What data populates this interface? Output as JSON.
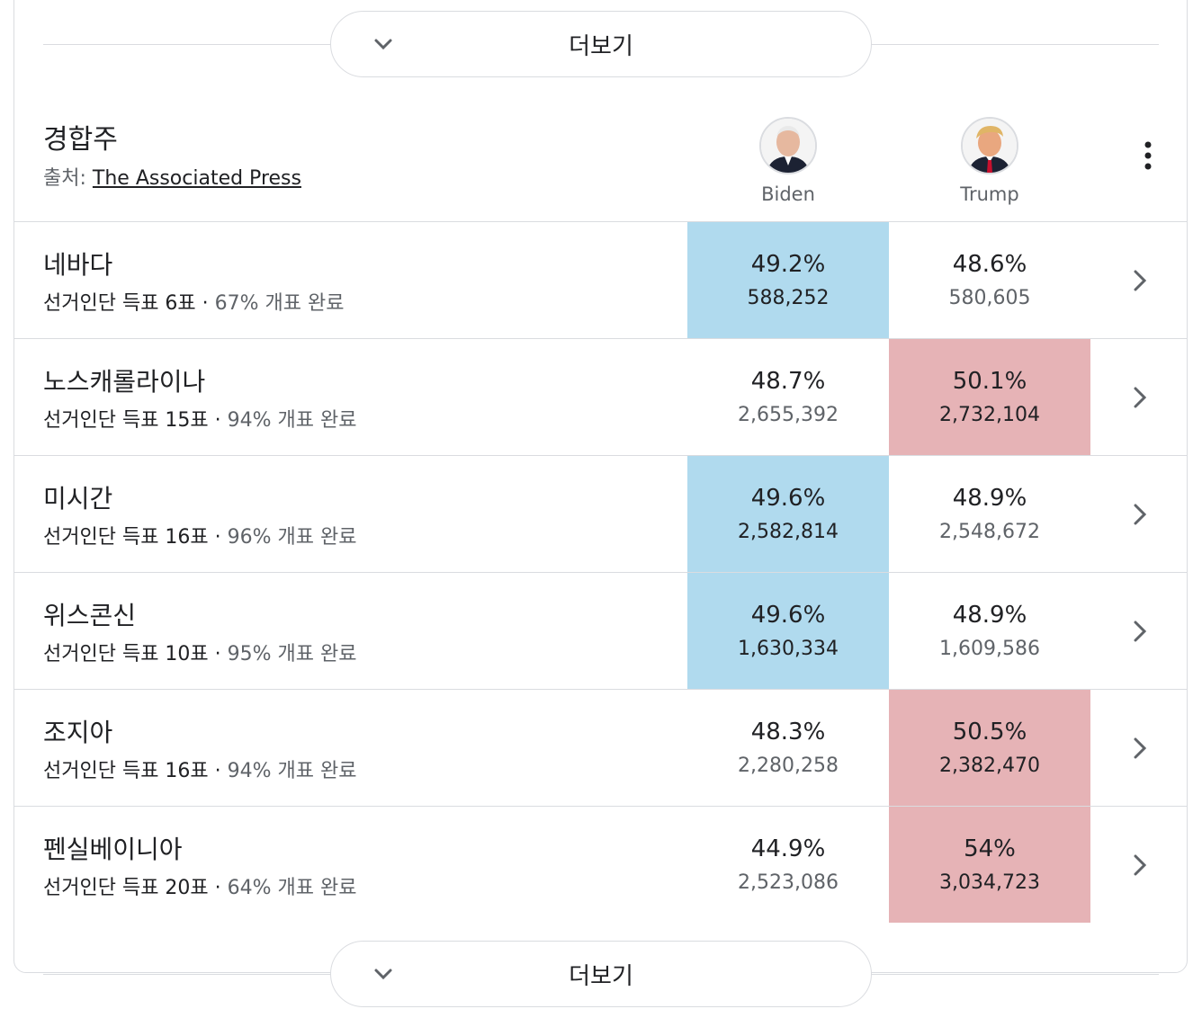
{
  "more_button_label": "더보기",
  "header": {
    "title": "경합주",
    "source_prefix": "출처:",
    "source_link": "The Associated Press"
  },
  "candidates": [
    {
      "name": "Biden",
      "party_color": "#b0daee"
    },
    {
      "name": "Trump",
      "party_color": "#e6b3b6"
    }
  ],
  "rows": [
    {
      "state": "네바다",
      "electoral": "선거인단 득표 6표",
      "reported": "67% 개표 완료",
      "biden_pct": "49.2%",
      "biden_votes": "588,252",
      "trump_pct": "48.6%",
      "trump_votes": "580,605",
      "leader": "biden"
    },
    {
      "state": "노스캐롤라이나",
      "electoral": "선거인단 득표 15표",
      "reported": "94% 개표 완료",
      "biden_pct": "48.7%",
      "biden_votes": "2,655,392",
      "trump_pct": "50.1%",
      "trump_votes": "2,732,104",
      "leader": "trump"
    },
    {
      "state": "미시간",
      "electoral": "선거인단 득표 16표",
      "reported": "96% 개표 완료",
      "biden_pct": "49.6%",
      "biden_votes": "2,582,814",
      "trump_pct": "48.9%",
      "trump_votes": "2,548,672",
      "leader": "biden"
    },
    {
      "state": "위스콘신",
      "electoral": "선거인단 득표 10표",
      "reported": "95% 개표 완료",
      "biden_pct": "49.6%",
      "biden_votes": "1,630,334",
      "trump_pct": "48.9%",
      "trump_votes": "1,609,586",
      "leader": "biden"
    },
    {
      "state": "조지아",
      "electoral": "선거인단 득표 16표",
      "reported": "94% 개표 완료",
      "biden_pct": "48.3%",
      "biden_votes": "2,280,258",
      "trump_pct": "50.5%",
      "trump_votes": "2,382,470",
      "leader": "trump"
    },
    {
      "state": "펜실베이니아",
      "electoral": "선거인단 득표 20표",
      "reported": "64% 개표 완료",
      "biden_pct": "44.9%",
      "biden_votes": "2,523,086",
      "trump_pct": "54%",
      "trump_votes": "3,034,723",
      "leader": "trump"
    }
  ],
  "icons": {
    "expand": "chevron-down-icon",
    "row_open": "chevron-right-icon",
    "menu": "more-vert-icon"
  }
}
